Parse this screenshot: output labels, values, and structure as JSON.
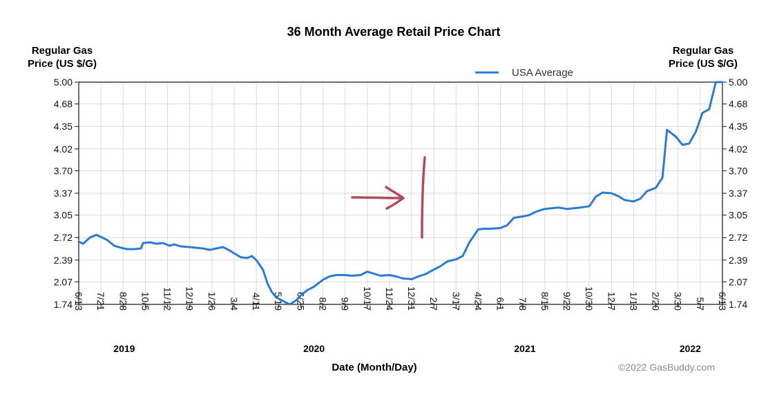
{
  "chart_data": {
    "type": "line",
    "title": "36 Month Average Retail Price Chart",
    "ylabel_left": [
      "Regular Gas",
      "Price (US $/G)"
    ],
    "ylabel_right": [
      "Regular Gas",
      "Price (US $/G)"
    ],
    "xlabel": "Date (Month/Day)",
    "ylim": [
      1.74,
      5.0
    ],
    "y_ticks": [
      "5.00",
      "4.68",
      "4.35",
      "4.02",
      "3.70",
      "3.37",
      "3.05",
      "2.72",
      "2.39",
      "2.07",
      "1.74"
    ],
    "x_ticks": [
      "6/13",
      "7/21",
      "8/28",
      "10/5",
      "11/12",
      "12/19",
      "1/26",
      "3/4",
      "4/11",
      "5/19",
      "6/25",
      "8/2",
      "9/9",
      "10/17",
      "11/24",
      "12/31",
      "2/7",
      "3/17",
      "4/24",
      "6/1",
      "7/8",
      "8/15",
      "9/22",
      "10/30",
      "12/7",
      "1/13",
      "2/20",
      "3/30",
      "5/7",
      "6/13"
    ],
    "years": [
      {
        "label": "2019",
        "tick_index": 2.05
      },
      {
        "label": "2020",
        "tick_index": 10.6
      },
      {
        "label": "2021",
        "tick_index": 20.1
      },
      {
        "label": "2022",
        "tick_index": 27.55
      }
    ],
    "legend": {
      "position": "top-right",
      "label": "USA Average"
    },
    "credit": "©2022 GasBuddy.com",
    "grid": true,
    "series": [
      {
        "name": "USA Average",
        "color": "#2b7bd6",
        "x_tick_index": [
          0,
          0.2,
          0.5,
          0.8,
          1.0,
          1.3,
          1.6,
          1.9,
          2.2,
          2.5,
          2.8,
          2.9,
          3.2,
          3.5,
          3.8,
          4.1,
          4.3,
          4.6,
          5.0,
          5.3,
          5.6,
          5.9,
          6.2,
          6.5,
          6.8,
          7.1,
          7.3,
          7.6,
          7.8,
          8.0,
          8.3,
          8.5,
          8.7,
          8.9,
          9.2,
          9.5,
          9.8,
          10.0,
          10.3,
          10.6,
          11.0,
          11.3,
          11.6,
          12.0,
          12.3,
          12.7,
          13.0,
          13.3,
          13.6,
          14.0,
          14.3,
          14.6,
          15.0,
          15.3,
          15.6,
          16.0,
          16.3,
          16.6,
          17.0,
          17.3,
          17.6,
          18.0,
          18.3,
          18.6,
          19.0,
          19.3,
          19.6,
          20.0,
          20.3,
          20.6,
          21.0,
          21.3,
          21.6,
          22.0,
          22.3,
          22.6,
          23.0,
          23.3,
          23.6,
          24.0,
          24.3,
          24.6,
          25.0,
          25.3,
          25.6,
          26.0,
          26.3,
          26.5,
          26.7,
          26.9,
          27.2,
          27.5,
          27.8,
          28.1,
          28.4,
          28.7,
          29.0
        ],
        "values": [
          2.66,
          2.63,
          2.72,
          2.76,
          2.73,
          2.68,
          2.6,
          2.57,
          2.55,
          2.55,
          2.56,
          2.64,
          2.65,
          2.63,
          2.64,
          2.6,
          2.62,
          2.59,
          2.58,
          2.57,
          2.56,
          2.54,
          2.56,
          2.58,
          2.53,
          2.47,
          2.43,
          2.42,
          2.45,
          2.39,
          2.25,
          2.05,
          1.92,
          1.84,
          1.79,
          1.74,
          1.8,
          1.87,
          1.95,
          2.0,
          2.1,
          2.15,
          2.17,
          2.17,
          2.16,
          2.17,
          2.22,
          2.19,
          2.16,
          2.17,
          2.15,
          2.12,
          2.11,
          2.15,
          2.18,
          2.25,
          2.3,
          2.37,
          2.4,
          2.45,
          2.65,
          2.84,
          2.85,
          2.85,
          2.86,
          2.9,
          3.01,
          3.03,
          3.05,
          3.1,
          3.14,
          3.15,
          3.16,
          3.14,
          3.15,
          3.16,
          3.18,
          3.32,
          3.38,
          3.37,
          3.33,
          3.27,
          3.25,
          3.29,
          3.4,
          3.45,
          3.6,
          4.3,
          4.25,
          4.2,
          4.08,
          4.1,
          4.27,
          4.55,
          4.6,
          5.0,
          5.0
        ]
      }
    ]
  },
  "annotation": {
    "color": "#b5495b"
  }
}
